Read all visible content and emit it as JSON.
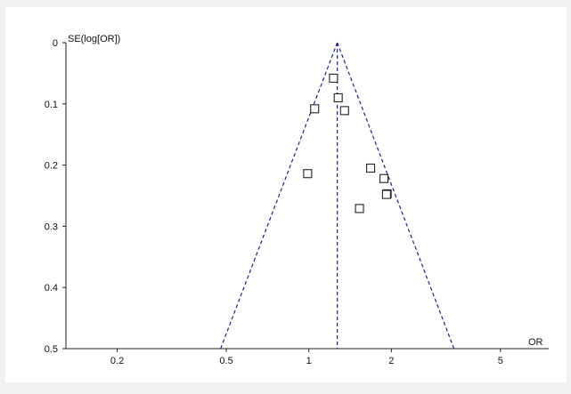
{
  "chart_data": {
    "type": "scatter",
    "subtype": "funnel-plot",
    "title": "",
    "xlabel": "OR",
    "ylabel": "SE(log[OR])",
    "x_scale": "log",
    "y_reversed": true,
    "xlim": [
      0.13,
      7.5
    ],
    "ylim": [
      0,
      0.5
    ],
    "x_ticks": [
      0.2,
      0.5,
      1,
      2,
      5
    ],
    "x_tick_labels": [
      "0.2",
      "0.5",
      "1",
      "2",
      "5"
    ],
    "y_ticks": [
      0,
      0.1,
      0.2,
      0.3,
      0.4,
      0.5
    ],
    "y_tick_labels": [
      "0",
      "0.1",
      "0.2",
      "0.3",
      "0.4",
      "0.5"
    ],
    "pooled_or": 1.27,
    "funnel_limits": "95% CI (pooled OR x/÷ exp(1.96·SE))",
    "grid": false,
    "legend": "none",
    "colors": {
      "funnel": "#1c1c9e",
      "points": "#222222",
      "background": "#ffffff",
      "page": "#f1f1f1"
    },
    "points": [
      {
        "or": 1.23,
        "se": 0.058
      },
      {
        "or": 1.28,
        "se": 0.09
      },
      {
        "or": 1.05,
        "se": 0.108
      },
      {
        "or": 1.35,
        "se": 0.111
      },
      {
        "or": 0.99,
        "se": 0.214
      },
      {
        "or": 1.68,
        "se": 0.205
      },
      {
        "or": 1.88,
        "se": 0.222
      },
      {
        "or": 1.93,
        "se": 0.247
      },
      {
        "or": 1.92,
        "se": 0.248
      },
      {
        "or": 1.53,
        "se": 0.271
      }
    ]
  }
}
